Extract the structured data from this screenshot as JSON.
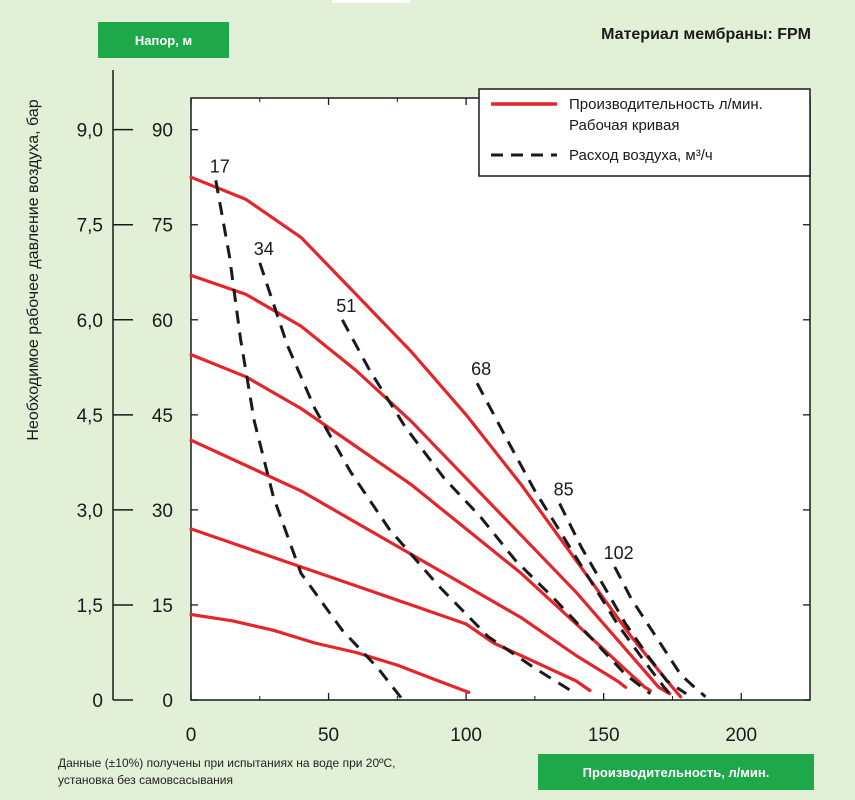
{
  "header": {
    "head_badge": "Напор, м",
    "material_title": "Материал мембраны: FPM"
  },
  "footer": {
    "note_line1": "Данные (±10%) получены при испытаниях на воде при 20ºС,",
    "note_line2": "установка без самовсасывания",
    "flow_badge": "Производительность, л/мин."
  },
  "colors": {
    "performance": "#e3262a",
    "air": "#1a1a1a",
    "badge": "#1fa84a",
    "background": "#e3f0d8"
  },
  "chart_data": {
    "type": "line",
    "xlabel": "Производительность, л/мин.",
    "ylabel": "Напор, м",
    "y2label": "Необходимое рабочее давление воздуха, бар",
    "xlim": [
      0,
      225
    ],
    "ylim": [
      0,
      95
    ],
    "x_ticks": [
      0,
      50,
      100,
      150,
      200
    ],
    "y_ticks": [
      0,
      15,
      30,
      45,
      60,
      75,
      90
    ],
    "y2_ticks": [
      "0",
      "1,5",
      "3,0",
      "4,5",
      "6,0",
      "7,5",
      "9,0"
    ],
    "grid": false,
    "legend": {
      "position": "top-right",
      "performance_line1": "Производительность л/мин.",
      "performance_line2": "Рабочая кривая",
      "air_label": "Расход воздуха, м³/ч"
    },
    "performance_curves": [
      {
        "pressure_bar": "9,0",
        "points": [
          [
            0,
            82.5
          ],
          [
            20,
            79
          ],
          [
            40,
            73
          ],
          [
            60,
            64
          ],
          [
            80,
            55
          ],
          [
            100,
            45
          ],
          [
            120,
            34
          ],
          [
            140,
            22
          ],
          [
            160,
            10
          ],
          [
            175,
            2
          ],
          [
            178,
            0.5
          ]
        ]
      },
      {
        "pressure_bar": "7,5",
        "points": [
          [
            0,
            67
          ],
          [
            20,
            64
          ],
          [
            40,
            59
          ],
          [
            60,
            52
          ],
          [
            80,
            44
          ],
          [
            100,
            35
          ],
          [
            120,
            26
          ],
          [
            140,
            17
          ],
          [
            160,
            7
          ],
          [
            170,
            2
          ],
          [
            174,
            1
          ]
        ]
      },
      {
        "pressure_bar": "6,0",
        "points": [
          [
            0,
            54.5
          ],
          [
            20,
            51
          ],
          [
            40,
            46
          ],
          [
            60,
            40
          ],
          [
            80,
            34
          ],
          [
            100,
            27
          ],
          [
            120,
            20
          ],
          [
            140,
            12
          ],
          [
            155,
            6
          ],
          [
            165,
            2
          ],
          [
            167,
            1.5
          ]
        ]
      },
      {
        "pressure_bar": "4,5",
        "points": [
          [
            0,
            41
          ],
          [
            20,
            37
          ],
          [
            40,
            33
          ],
          [
            60,
            28
          ],
          [
            80,
            23
          ],
          [
            100,
            18
          ],
          [
            120,
            13
          ],
          [
            140,
            7
          ],
          [
            155,
            3
          ],
          [
            158,
            2
          ]
        ]
      },
      {
        "pressure_bar": "3,0",
        "points": [
          [
            0,
            27
          ],
          [
            20,
            24
          ],
          [
            40,
            21
          ],
          [
            60,
            18
          ],
          [
            80,
            15
          ],
          [
            100,
            12
          ],
          [
            110,
            9
          ],
          [
            120,
            7
          ],
          [
            140,
            3
          ],
          [
            145,
            1.5
          ]
        ]
      },
      {
        "pressure_bar": "1,5",
        "points": [
          [
            0,
            13.5
          ],
          [
            15,
            12.5
          ],
          [
            30,
            11
          ],
          [
            45,
            9
          ],
          [
            60,
            7.5
          ],
          [
            75,
            5.5
          ],
          [
            90,
            3
          ],
          [
            101,
            1.2
          ]
        ]
      }
    ],
    "air_curves": [
      {
        "label": "17",
        "points": [
          [
            9,
            82
          ],
          [
            14,
            70
          ],
          [
            18,
            57
          ],
          [
            23,
            44
          ],
          [
            30,
            32
          ],
          [
            40,
            20
          ],
          [
            55,
            11
          ],
          [
            68,
            5
          ],
          [
            77,
            0
          ]
        ]
      },
      {
        "label": "34",
        "points": [
          [
            25,
            69
          ],
          [
            35,
            56
          ],
          [
            45,
            46
          ],
          [
            58,
            36
          ],
          [
            72,
            27
          ],
          [
            90,
            18
          ],
          [
            108,
            10
          ],
          [
            125,
            5
          ],
          [
            138,
            1.5
          ]
        ]
      },
      {
        "label": "51",
        "points": [
          [
            55,
            60
          ],
          [
            65,
            52
          ],
          [
            78,
            43
          ],
          [
            92,
            35
          ],
          [
            105,
            29
          ],
          [
            118,
            22
          ],
          [
            132,
            16
          ],
          [
            145,
            10
          ],
          [
            158,
            4
          ],
          [
            167,
            1
          ]
        ]
      },
      {
        "label": "68",
        "points": [
          [
            104,
            50
          ],
          [
            115,
            41
          ],
          [
            125,
            33
          ],
          [
            135,
            26
          ],
          [
            145,
            19
          ],
          [
            155,
            12
          ],
          [
            165,
            6
          ],
          [
            172,
            2
          ],
          [
            175,
            0.5
          ]
        ]
      },
      {
        "label": "85",
        "points": [
          [
            134,
            31
          ],
          [
            142,
            24
          ],
          [
            150,
            18
          ],
          [
            158,
            12
          ],
          [
            166,
            7
          ],
          [
            173,
            3
          ],
          [
            180,
            1
          ]
        ]
      },
      {
        "label": "102",
        "points": [
          [
            154,
            21
          ],
          [
            160,
            16
          ],
          [
            166,
            12
          ],
          [
            172,
            8
          ],
          [
            178,
            4
          ],
          [
            183,
            2
          ],
          [
            187,
            0.5
          ]
        ]
      }
    ]
  }
}
